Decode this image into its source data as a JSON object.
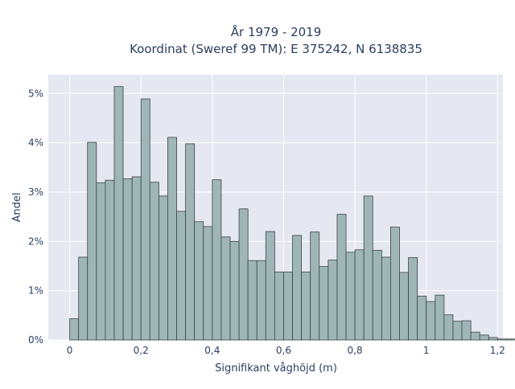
{
  "chart_data": {
    "type": "bar",
    "title_line1": "År 1979 - 2019",
    "title_line2": "Koordinat (Sweref 99 TM): E 375242, N 6138835",
    "xlabel": "Signifikant våghöjd (m)",
    "ylabel": "Andel",
    "xlim": [
      -0.06,
      1.215
    ],
    "ylim": [
      0,
      0.0538
    ],
    "bin_start": 0.0,
    "bin_width": 0.025,
    "values": [
      0.0043,
      0.0168,
      0.0401,
      0.0319,
      0.0324,
      0.0514,
      0.0327,
      0.0331,
      0.0489,
      0.032,
      0.0292,
      0.0411,
      0.0261,
      0.0398,
      0.024,
      0.023,
      0.0325,
      0.0209,
      0.02,
      0.0266,
      0.0161,
      0.0161,
      0.022,
      0.0138,
      0.0138,
      0.0212,
      0.0138,
      0.0219,
      0.0149,
      0.0162,
      0.0255,
      0.0178,
      0.0183,
      0.0292,
      0.0182,
      0.0168,
      0.0229,
      0.0137,
      0.0167,
      0.0089,
      0.0078,
      0.0091,
      0.0051,
      0.0038,
      0.0039,
      0.0016,
      0.001,
      0.0005,
      0.0002,
      0.0002
    ],
    "x_ticks": [
      0,
      0.2,
      0.4,
      0.6,
      0.8,
      1,
      1.2
    ],
    "x_tick_labels": [
      "0",
      "0,2",
      "0,4",
      "0,6",
      "0,8",
      "1",
      "1,2"
    ],
    "y_ticks": [
      0,
      0.01,
      0.02,
      0.03,
      0.04,
      0.05
    ],
    "y_tick_labels": [
      "0%",
      "1%",
      "2%",
      "3%",
      "4%",
      "5%"
    ],
    "grid": true,
    "colors": {
      "plot_bg": "#e5e8f1",
      "grid": "#ffffff",
      "bar_fill": "#9fb6b6",
      "bar_stroke": "#3b4444"
    }
  }
}
